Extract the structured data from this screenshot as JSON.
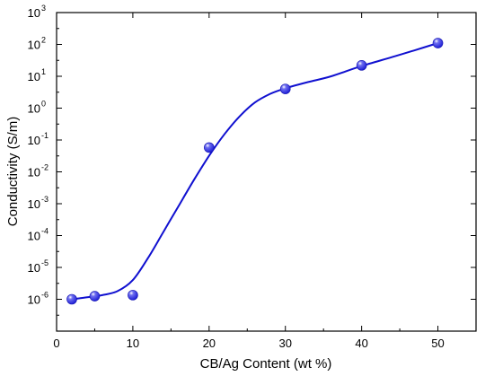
{
  "chart_data": {
    "type": "scatter",
    "title": "",
    "xlabel": "CB/Ag Content (wt %)",
    "ylabel": "Conductivity (S/m)",
    "xlim": [
      0,
      55
    ],
    "ylim_exponents": [
      -7,
      3
    ],
    "y_scale": "log",
    "x_ticks": [
      0,
      10,
      20,
      30,
      40,
      50
    ],
    "y_tick_base": "10",
    "y_tick_exponents": [
      -6,
      -5,
      -4,
      -3,
      -2,
      -1,
      0,
      1,
      2,
      3
    ],
    "grid": false,
    "legend": "none",
    "marker_color": "#1f1fd6",
    "line_color": "#1010d0",
    "series": [
      {
        "x": [
          2,
          5,
          10,
          20,
          30,
          40,
          50
        ],
        "y": [
          1e-06,
          1.25e-06,
          1.35e-06,
          0.058,
          4.0,
          22,
          110
        ]
      }
    ],
    "fit_curve": {
      "x": [
        2,
        4,
        6,
        8,
        10,
        12,
        14,
        16,
        18,
        20,
        22,
        24,
        26,
        28,
        30,
        33,
        36,
        40,
        44,
        47,
        50
      ],
      "y": [
        1e-06,
        1.15e-06,
        1.35e-06,
        1.8e-06,
        4e-06,
        2e-05,
        0.00013,
        0.00085,
        0.0055,
        0.032,
        0.15,
        0.55,
        1.5,
        2.8,
        4.2,
        6.6,
        10,
        21,
        40,
        66,
        110
      ]
    }
  }
}
